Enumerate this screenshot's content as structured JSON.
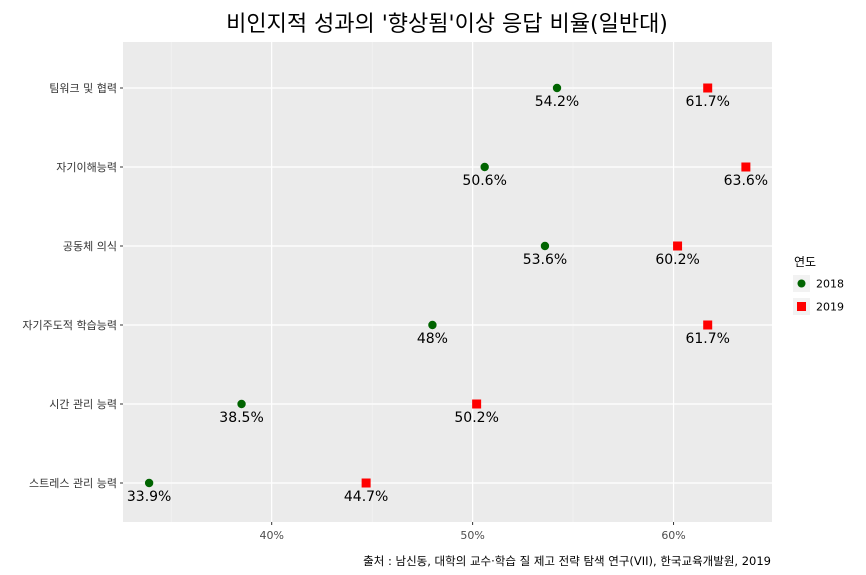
{
  "chart_data": {
    "type": "scatter",
    "title": "비인지적 성과의 '향상됨'이상 응답 비율(일반대)",
    "caption": "출처 : 남신동, 대학의 교수·학습 질 제고 전략 탐색 연구(VII), 한국교육개발원, 2019",
    "categories": [
      "팀워크 및 협력",
      "자기이해능력",
      "공동체 의식",
      "자기주도적 학습능력",
      "시간 관리 능력",
      "스트레스 관리 능력"
    ],
    "series": [
      {
        "name": "2018",
        "color": "#006400",
        "shape": "circle",
        "values": [
          54.2,
          50.6,
          53.6,
          48.0,
          38.5,
          33.9
        ],
        "labels": [
          "54.2%",
          "50.6%",
          "53.6%",
          "48%",
          "38.5%",
          "33.9%"
        ]
      },
      {
        "name": "2019",
        "color": "#ff0000",
        "shape": "square",
        "values": [
          61.7,
          63.6,
          60.2,
          61.7,
          50.2,
          44.7
        ],
        "labels": [
          "61.7%",
          "63.6%",
          "60.2%",
          "61.7%",
          "50.2%",
          "44.7%"
        ]
      }
    ],
    "x_ticks": [
      40,
      50,
      60
    ],
    "x_tick_labels": [
      "40%",
      "50%",
      "60%"
    ],
    "xlim": [
      32.6,
      64.9
    ],
    "grid": true,
    "legend": {
      "title": "연도",
      "position": "right"
    }
  }
}
